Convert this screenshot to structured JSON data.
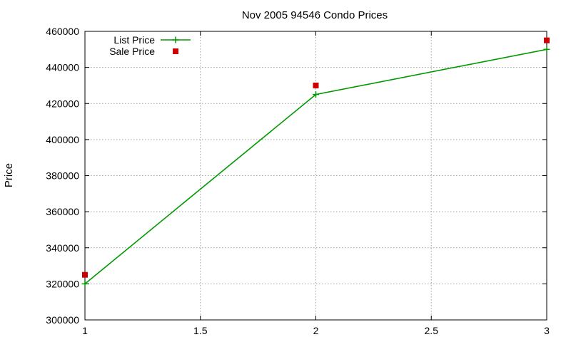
{
  "chart_data": {
    "type": "line",
    "title": "Nov 2005 94546 Condo Prices",
    "xlabel": "",
    "ylabel": "Price",
    "xlim": [
      1,
      3
    ],
    "ylim": [
      300000,
      460000
    ],
    "xticks": [
      "1",
      "1.5",
      "2",
      "2.5",
      "3"
    ],
    "yticks": [
      "300000",
      "320000",
      "340000",
      "360000",
      "380000",
      "400000",
      "420000",
      "440000",
      "460000"
    ],
    "grid": true,
    "legend_position": "top-left",
    "series": [
      {
        "name": "List Price",
        "style": "linespoints",
        "marker": "plus",
        "color": "#009900",
        "x": [
          1,
          2,
          3
        ],
        "y": [
          320000,
          425000,
          450000
        ]
      },
      {
        "name": "Sale Price",
        "style": "points",
        "marker": "square",
        "color": "#cc0000",
        "x": [
          1,
          2,
          3
        ],
        "y": [
          325000,
          430000,
          455000
        ]
      }
    ]
  }
}
